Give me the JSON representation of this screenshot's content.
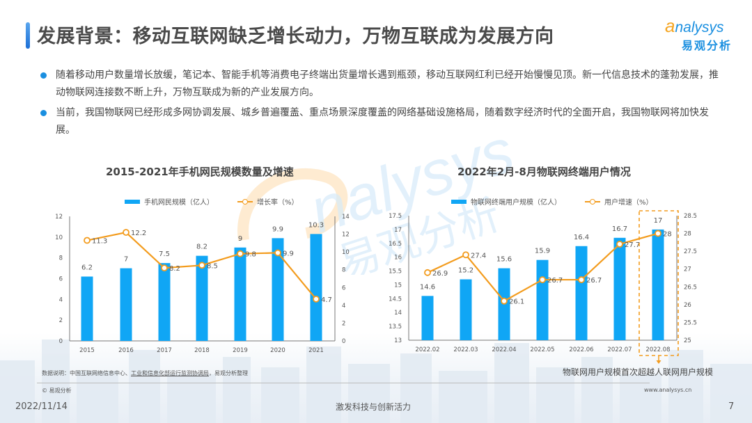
{
  "header": {
    "title": "发展背景：移动互联网缺乏增长动力，万物互联成为发展方向",
    "logo_en": "nalysys",
    "logo_en_prefix": "a",
    "logo_cn": "易观分析"
  },
  "bullets": [
    "随着移动用户数量增长放缓，笔记本、智能手机等消费电子终端出货量增长遇到瓶颈，移动互联网红利已经开始慢慢见顶。新一代信息技术的蓬勃发展，推动物联网连接数不断上升，万物互联成为新的产业发展方向。",
    "当前，我国物联网已经形成多网协调发展、城乡普遍覆盖、重点场景深度覆盖的网络基础设施格局，随着数字经济时代的全面开启，我国物联网将加快发展。"
  ],
  "colors": {
    "bar": "#10a6f5",
    "line": "#f39c1e",
    "accent": "#1a8fe0",
    "highlight_box": "#f39c1e"
  },
  "chart_data": [
    {
      "type": "bar",
      "title": "2015-2021年手机网民规模数量及增速",
      "categories": [
        "2015",
        "2016",
        "2017",
        "2018",
        "2019",
        "2020",
        "2021"
      ],
      "series": [
        {
          "name": "手机网民规模（亿人）",
          "type": "bar",
          "axis": "left",
          "values": [
            6.2,
            7,
            7.5,
            8.2,
            9,
            9.9,
            10.3
          ]
        },
        {
          "name": "增长率（%）",
          "type": "line",
          "axis": "right",
          "values": [
            11.3,
            12.2,
            8.2,
            8.5,
            9.8,
            9.9,
            4.7
          ]
        }
      ],
      "ylim_left": [
        0,
        12
      ],
      "yticks_left": [
        0,
        2,
        4,
        6,
        8,
        10,
        12
      ],
      "ylim_right": [
        0,
        14
      ],
      "yticks_right": [
        0,
        2,
        4,
        6,
        8,
        10,
        12,
        14
      ],
      "legend_position": "top",
      "grid": false
    },
    {
      "type": "bar",
      "title": "2022年2月-8月物联网终端用户情况",
      "categories": [
        "2022.02",
        "2022.03",
        "2022.04",
        "2022.05",
        "2022.06",
        "2022.07",
        "2022.08"
      ],
      "series": [
        {
          "name": "物联网终端用户规模（亿人）",
          "type": "bar",
          "axis": "left",
          "values": [
            14.6,
            15.2,
            15.6,
            15.9,
            16.4,
            16.7,
            17
          ]
        },
        {
          "name": "用户增速（%）",
          "type": "line",
          "axis": "right",
          "values": [
            26.9,
            27.4,
            26.1,
            26.7,
            26.7,
            27.7,
            28
          ]
        }
      ],
      "ylim_left": [
        13,
        17.5
      ],
      "yticks_left": [
        13,
        13.5,
        14,
        14.5,
        15,
        15.5,
        16,
        16.5,
        17,
        17.5
      ],
      "ylim_right": [
        25,
        28.5
      ],
      "yticks_right": [
        25,
        25.5,
        26,
        26.5,
        27,
        27.5,
        28,
        28.5
      ],
      "legend_position": "top",
      "grid": false,
      "annotation": "物联网用户规模首次超越人联网用户规模",
      "highlighted_category": "2022.08"
    }
  ],
  "charts": {
    "c1": {
      "title": "2015-2021年手机网民规模数量及增速",
      "legend_bar": "手机网民规模（亿人）",
      "legend_line": "增长率（%）"
    },
    "c2": {
      "title": "2022年2月-8月物联网终端用户情况",
      "legend_bar": "物联网终端用户规模（亿人）",
      "legend_line": "用户增速（%）",
      "callout": "物联网用户规模首次超越人联网用户规模"
    }
  },
  "footer": {
    "note_prefix": "数据说明：中国互联网络信息中心、",
    "note_underlined": "工业和信息化部运行监测协调局",
    "note_suffix": "，易观分析整理",
    "copyright": "© 易观分析",
    "website": "www.analysys.cn",
    "date": "2022/11/14",
    "slogan": "激发科技与创新活力",
    "page": "7"
  }
}
